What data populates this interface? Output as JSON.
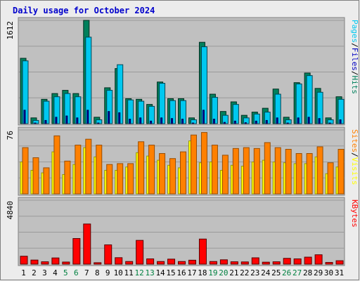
{
  "colors": {
    "background": "#ececec",
    "panel": "#c0c0c0",
    "grid": "#9a9a9a",
    "title": "#0000cc",
    "day": "#000000",
    "weekend": "#008040",
    "hits": "#00805c",
    "files": "#00c8f0",
    "pages": "#0000c0",
    "visits": "#ffff00",
    "sites": "#ff8000",
    "kbytes": "#ff0000"
  },
  "chart_data": {
    "type": "bar",
    "title": "Daily usage for October 2024",
    "categories": [
      "1",
      "2",
      "3",
      "4",
      "5",
      "6",
      "7",
      "8",
      "9",
      "10",
      "11",
      "12",
      "13",
      "14",
      "15",
      "16",
      "17",
      "18",
      "19",
      "20",
      "21",
      "22",
      "23",
      "24",
      "25",
      "26",
      "27",
      "28",
      "29",
      "30",
      "31"
    ],
    "weekend_days": [
      "5",
      "6",
      "12",
      "13",
      "19",
      "20",
      "26",
      "27"
    ],
    "panels": [
      {
        "name": "hits-files-pages",
        "scale_label": "1612",
        "ylim": [
          0,
          1612
        ],
        "legend": [
          "Pages",
          "/",
          "Files",
          "/",
          "Hits"
        ],
        "legend_colors": [
          "files",
          "separator",
          "pages",
          "separator",
          "hits"
        ],
        "series": [
          {
            "name": "Hits",
            "color_key": "hits",
            "values": [
              1020,
              90,
              380,
              470,
              520,
              470,
              1612,
              100,
              560,
              860,
              390,
              380,
              300,
              650,
              390,
              390,
              90,
              1270,
              460,
              190,
              340,
              130,
              180,
              240,
              540,
              100,
              640,
              790,
              550,
              90,
              420
            ]
          },
          {
            "name": "Files",
            "color_key": "files",
            "values": [
              980,
              50,
              350,
              420,
              470,
              420,
              1350,
              60,
              520,
              920,
              370,
              350,
              270,
              630,
              360,
              360,
              60,
              1200,
              410,
              130,
              300,
              90,
              150,
              180,
              460,
              60,
              620,
              750,
              490,
              60,
              380
            ]
          },
          {
            "name": "Pages",
            "color_key": "pages",
            "values": [
              210,
              10,
              50,
              100,
              120,
              90,
              210,
              10,
              190,
              170,
              70,
              90,
              40,
              90,
              80,
              70,
              10,
              210,
              70,
              20,
              40,
              15,
              40,
              50,
              90,
              10,
              90,
              100,
              80,
              10,
              60
            ]
          }
        ]
      },
      {
        "name": "visits-sites",
        "scale_label": "76",
        "ylim": [
          0,
          76
        ],
        "legend": [
          "Sites",
          "/",
          "Visits"
        ],
        "legend_colors": [
          "sites",
          "separator",
          "visits"
        ],
        "series": [
          {
            "name": "Visits",
            "color_key": "visits",
            "values": [
              38,
              28,
              25,
              50,
              23,
              35,
              55,
              44,
              28,
              28,
              32,
              49,
              45,
              40,
              34,
              31,
              63,
              37,
              38,
              28,
              34,
              33,
              38,
              40,
              38,
              37,
              36,
              36,
              44,
              24,
              32
            ]
          },
          {
            "name": "Sites",
            "color_key": "sites",
            "values": [
              55,
              43,
              31,
              69,
              39,
              58,
              65,
              58,
              35,
              36,
              36,
              62,
              58,
              48,
              42,
              50,
              70,
              73,
              58,
              46,
              54,
              55,
              54,
              61,
              55,
              53,
              48,
              48,
              56,
              37,
              53
            ]
          }
        ]
      },
      {
        "name": "kbytes",
        "scale_label": "4840",
        "ylim": [
          0,
          4840
        ],
        "legend": [
          "KBytes"
        ],
        "legend_colors": [
          "kbytes"
        ],
        "series": [
          {
            "name": "KBytes",
            "color_key": "kbytes",
            "values": [
              600,
              310,
              180,
              470,
              160,
              1940,
              3040,
              110,
              1460,
              490,
              200,
              1800,
              400,
              200,
              380,
              200,
              300,
              1900,
              200,
              330,
              180,
              170,
              480,
              150,
              180,
              440,
              400,
              530,
              710,
              130,
              260
            ]
          }
        ]
      }
    ]
  }
}
